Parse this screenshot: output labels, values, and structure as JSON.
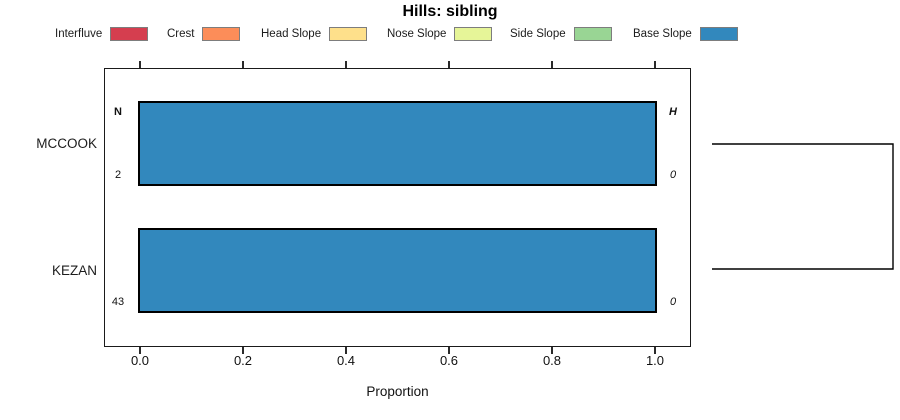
{
  "figure": {
    "title": "Hills: sibling"
  },
  "legend": {
    "position": "top",
    "items": [
      {
        "label": "Interfluve",
        "color": "#d53e4f"
      },
      {
        "label": "Crest",
        "color": "#fc8d59"
      },
      {
        "label": "Head Slope",
        "color": "#fee08b"
      },
      {
        "label": "Nose Slope",
        "color": "#e6f598"
      },
      {
        "label": "Side Slope",
        "color": "#99d594"
      },
      {
        "label": "Base Slope",
        "color": "#3288bd"
      }
    ]
  },
  "axis": {
    "xlabel": "Proportion",
    "xtick_labels": [
      "0.0",
      "0.2",
      "0.4",
      "0.6",
      "0.8",
      "1.0"
    ]
  },
  "chart_data": {
    "type": "bar",
    "orientation": "horizontal",
    "stacked": true,
    "title": "Hills: sibling",
    "xlabel": "Proportion",
    "ylabel": "",
    "xlim": [
      -0.07,
      1.07
    ],
    "xticks": [
      0,
      0.2,
      0.4,
      0.6,
      0.8,
      1
    ],
    "grid": false,
    "legend_position": "top",
    "categories": [
      "MCCOOK",
      "KEZAN"
    ],
    "series": [
      {
        "name": "Interfluve",
        "color": "#d53e4f",
        "values": [
          0,
          0
        ]
      },
      {
        "name": "Crest",
        "color": "#fc8d59",
        "values": [
          0,
          0
        ]
      },
      {
        "name": "Head Slope",
        "color": "#fee08b",
        "values": [
          0,
          0
        ]
      },
      {
        "name": "Nose Slope",
        "color": "#e6f598",
        "values": [
          0,
          0
        ]
      },
      {
        "name": "Side Slope",
        "color": "#99d594",
        "values": [
          0,
          0
        ]
      },
      {
        "name": "Base Slope",
        "color": "#3288bd",
        "values": [
          1.0,
          1.0
        ]
      }
    ],
    "row_annotations": {
      "left_header": "N",
      "left_values": [
        "2",
        "43"
      ],
      "right_header": "H",
      "right_values": [
        "0",
        "0"
      ]
    },
    "right_dendrogram": {
      "leaves": [
        "MCCOOK",
        "KEZAN"
      ]
    }
  }
}
